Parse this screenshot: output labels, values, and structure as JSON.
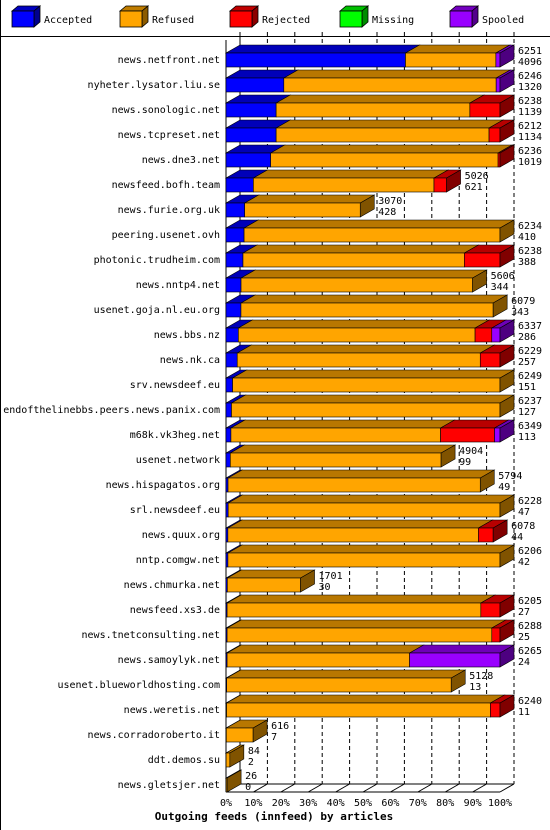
{
  "chart_data": {
    "type": "bar",
    "orientation": "horizontal",
    "stacked": true,
    "percent_stacked": true,
    "three_d": true,
    "title": "Outgoing feeds (innfeed) by articles",
    "xlabel": "",
    "ylabel": "",
    "xlim": [
      0,
      100
    ],
    "x_ticks": [
      "0%",
      "10%",
      "20%",
      "30%",
      "40%",
      "50%",
      "60%",
      "70%",
      "80%",
      "90%",
      "100%"
    ],
    "grid": "vertical dashed",
    "legend_position": "top",
    "legend": [
      {
        "key": "accepted",
        "label": "Accepted",
        "color": "#0000ff"
      },
      {
        "key": "refused",
        "label": "Refused",
        "color": "#ffa500"
      },
      {
        "key": "rejected",
        "label": "Rejected",
        "color": "#ff0000"
      },
      {
        "key": "missing",
        "label": "Missing",
        "color": "#00ff00"
      },
      {
        "key": "spooled",
        "label": "Spooled",
        "color": "#9900ff"
      }
    ],
    "rows": [
      {
        "label": "news.netfront.net",
        "offered": 6251,
        "accepted": 4096,
        "scale": 1.0,
        "pct": {
          "accepted": 65.5,
          "refused": 33.0,
          "rejected": 0,
          "missing": 0,
          "spooled": 1.5
        }
      },
      {
        "label": "nyheter.lysator.liu.se",
        "offered": 6246,
        "accepted": 1320,
        "scale": 1.0,
        "pct": {
          "accepted": 21.1,
          "refused": 77.5,
          "rejected": 0,
          "missing": 0,
          "spooled": 1.4
        }
      },
      {
        "label": "news.sonologic.net",
        "offered": 6238,
        "accepted": 1139,
        "scale": 1.0,
        "pct": {
          "accepted": 18.3,
          "refused": 70.7,
          "rejected": 11.0,
          "missing": 0,
          "spooled": 0
        }
      },
      {
        "label": "news.tcpreset.net",
        "offered": 6212,
        "accepted": 1134,
        "scale": 1.0,
        "pct": {
          "accepted": 18.3,
          "refused": 77.7,
          "rejected": 4.0,
          "missing": 0,
          "spooled": 0
        }
      },
      {
        "label": "news.dne3.net",
        "offered": 6236,
        "accepted": 1019,
        "scale": 1.0,
        "pct": {
          "accepted": 16.3,
          "refused": 83.0,
          "rejected": 0.7,
          "missing": 0,
          "spooled": 0
        }
      },
      {
        "label": "newsfeed.bofh.team",
        "offered": 5026,
        "accepted": 621,
        "scale": 0.805,
        "pct": {
          "accepted": 12.4,
          "refused": 81.9,
          "rejected": 5.7,
          "missing": 0,
          "spooled": 0
        }
      },
      {
        "label": "news.furie.org.uk",
        "offered": 3070,
        "accepted": 428,
        "scale": 0.49,
        "pct": {
          "accepted": 13.9,
          "refused": 86.1,
          "rejected": 0,
          "missing": 0,
          "spooled": 0
        }
      },
      {
        "label": "peering.usenet.ovh",
        "offered": 6234,
        "accepted": 410,
        "scale": 1.0,
        "pct": {
          "accepted": 6.6,
          "refused": 93.4,
          "rejected": 0,
          "missing": 0,
          "spooled": 0
        }
      },
      {
        "label": "photonic.trudheim.com",
        "offered": 6238,
        "accepted": 388,
        "scale": 1.0,
        "pct": {
          "accepted": 6.2,
          "refused": 80.8,
          "rejected": 13.0,
          "missing": 0,
          "spooled": 0
        }
      },
      {
        "label": "news.nntp4.net",
        "offered": 5606,
        "accepted": 344,
        "scale": 0.9,
        "pct": {
          "accepted": 6.1,
          "refused": 93.9,
          "rejected": 0,
          "missing": 0,
          "spooled": 0
        }
      },
      {
        "label": "usenet.goja.nl.eu.org",
        "offered": 6079,
        "accepted": 343,
        "scale": 0.975,
        "pct": {
          "accepted": 5.6,
          "refused": 94.4,
          "rejected": 0,
          "missing": 0,
          "spooled": 0
        }
      },
      {
        "label": "news.bbs.nz",
        "offered": 6337,
        "accepted": 286,
        "scale": 1.0,
        "pct": {
          "accepted": 4.5,
          "refused": 86.4,
          "rejected": 6.1,
          "missing": 0,
          "spooled": 3.0
        }
      },
      {
        "label": "news.nk.ca",
        "offered": 6229,
        "accepted": 257,
        "scale": 1.0,
        "pct": {
          "accepted": 4.1,
          "refused": 88.7,
          "rejected": 7.2,
          "missing": 0,
          "spooled": 0
        }
      },
      {
        "label": "srv.newsdeef.eu",
        "offered": 6249,
        "accepted": 151,
        "scale": 1.0,
        "pct": {
          "accepted": 2.4,
          "refused": 97.6,
          "rejected": 0,
          "missing": 0,
          "spooled": 0
        }
      },
      {
        "label": "endofthelinebbs.peers.news.panix.com",
        "offered": 6237,
        "accepted": 127,
        "scale": 1.0,
        "pct": {
          "accepted": 2.0,
          "refused": 98.0,
          "rejected": 0,
          "missing": 0,
          "spooled": 0
        }
      },
      {
        "label": "m68k.vk3heg.net",
        "offered": 6349,
        "accepted": 113,
        "scale": 1.0,
        "pct": {
          "accepted": 1.8,
          "refused": 76.5,
          "rejected": 19.7,
          "missing": 0,
          "spooled": 2.0
        }
      },
      {
        "label": "usenet.network",
        "offered": 4904,
        "accepted": 99,
        "scale": 0.785,
        "pct": {
          "accepted": 2.0,
          "refused": 98.0,
          "rejected": 0,
          "missing": 0,
          "spooled": 0
        }
      },
      {
        "label": "news.hispagatos.org",
        "offered": 5794,
        "accepted": 49,
        "scale": 0.928,
        "pct": {
          "accepted": 0.8,
          "refused": 99.2,
          "rejected": 0,
          "missing": 0,
          "spooled": 0
        }
      },
      {
        "label": "srl.newsdeef.eu",
        "offered": 6228,
        "accepted": 47,
        "scale": 1.0,
        "pct": {
          "accepted": 0.8,
          "refused": 99.2,
          "rejected": 0,
          "missing": 0,
          "spooled": 0
        }
      },
      {
        "label": "news.quux.org",
        "offered": 6078,
        "accepted": 44,
        "scale": 0.975,
        "pct": {
          "accepted": 0.7,
          "refused": 93.8,
          "rejected": 5.5,
          "missing": 0,
          "spooled": 0
        }
      },
      {
        "label": "nntp.comgw.net",
        "offered": 6206,
        "accepted": 42,
        "scale": 1.0,
        "pct": {
          "accepted": 0.7,
          "refused": 99.3,
          "rejected": 0,
          "missing": 0,
          "spooled": 0
        }
      },
      {
        "label": "news.chmurka.net",
        "offered": 1701,
        "accepted": 30,
        "scale": 0.272,
        "pct": {
          "accepted": 1.8,
          "refused": 98.2,
          "rejected": 0,
          "missing": 0,
          "spooled": 0
        }
      },
      {
        "label": "newsfeed.xs3.de",
        "offered": 6205,
        "accepted": 27,
        "scale": 1.0,
        "pct": {
          "accepted": 0.4,
          "refused": 92.6,
          "rejected": 7.0,
          "missing": 0,
          "spooled": 0
        }
      },
      {
        "label": "news.tnetconsulting.net",
        "offered": 6288,
        "accepted": 25,
        "scale": 1.0,
        "pct": {
          "accepted": 0.4,
          "refused": 96.6,
          "rejected": 3.0,
          "missing": 0,
          "spooled": 0
        }
      },
      {
        "label": "news.samoylyk.net",
        "offered": 6265,
        "accepted": 24,
        "scale": 1.0,
        "pct": {
          "accepted": 0.4,
          "refused": 66.6,
          "rejected": 0,
          "missing": 0,
          "spooled": 33.0
        }
      },
      {
        "label": "usenet.blueworldhosting.com",
        "offered": 5128,
        "accepted": 13,
        "scale": 0.822,
        "pct": {
          "accepted": 0.3,
          "refused": 99.7,
          "rejected": 0,
          "missing": 0,
          "spooled": 0
        }
      },
      {
        "label": "news.weretis.net",
        "offered": 6240,
        "accepted": 11,
        "scale": 1.0,
        "pct": {
          "accepted": 0.2,
          "refused": 96.3,
          "rejected": 3.5,
          "missing": 0,
          "spooled": 0
        }
      },
      {
        "label": "news.corradoroberto.it",
        "offered": 616,
        "accepted": 7,
        "scale": 0.099,
        "pct": {
          "accepted": 1.1,
          "refused": 98.9,
          "rejected": 0,
          "missing": 0,
          "spooled": 0
        }
      },
      {
        "label": "ddt.demos.su",
        "offered": 84,
        "accepted": 2,
        "scale": 0.014,
        "pct": {
          "accepted": 2.4,
          "refused": 97.6,
          "rejected": 0,
          "missing": 0,
          "spooled": 0
        }
      },
      {
        "label": "news.gletsjer.net",
        "offered": 26,
        "accepted": 0,
        "scale": 0.004,
        "pct": {
          "accepted": 0,
          "refused": 100,
          "rejected": 0,
          "missing": 0,
          "spooled": 0
        }
      }
    ]
  }
}
